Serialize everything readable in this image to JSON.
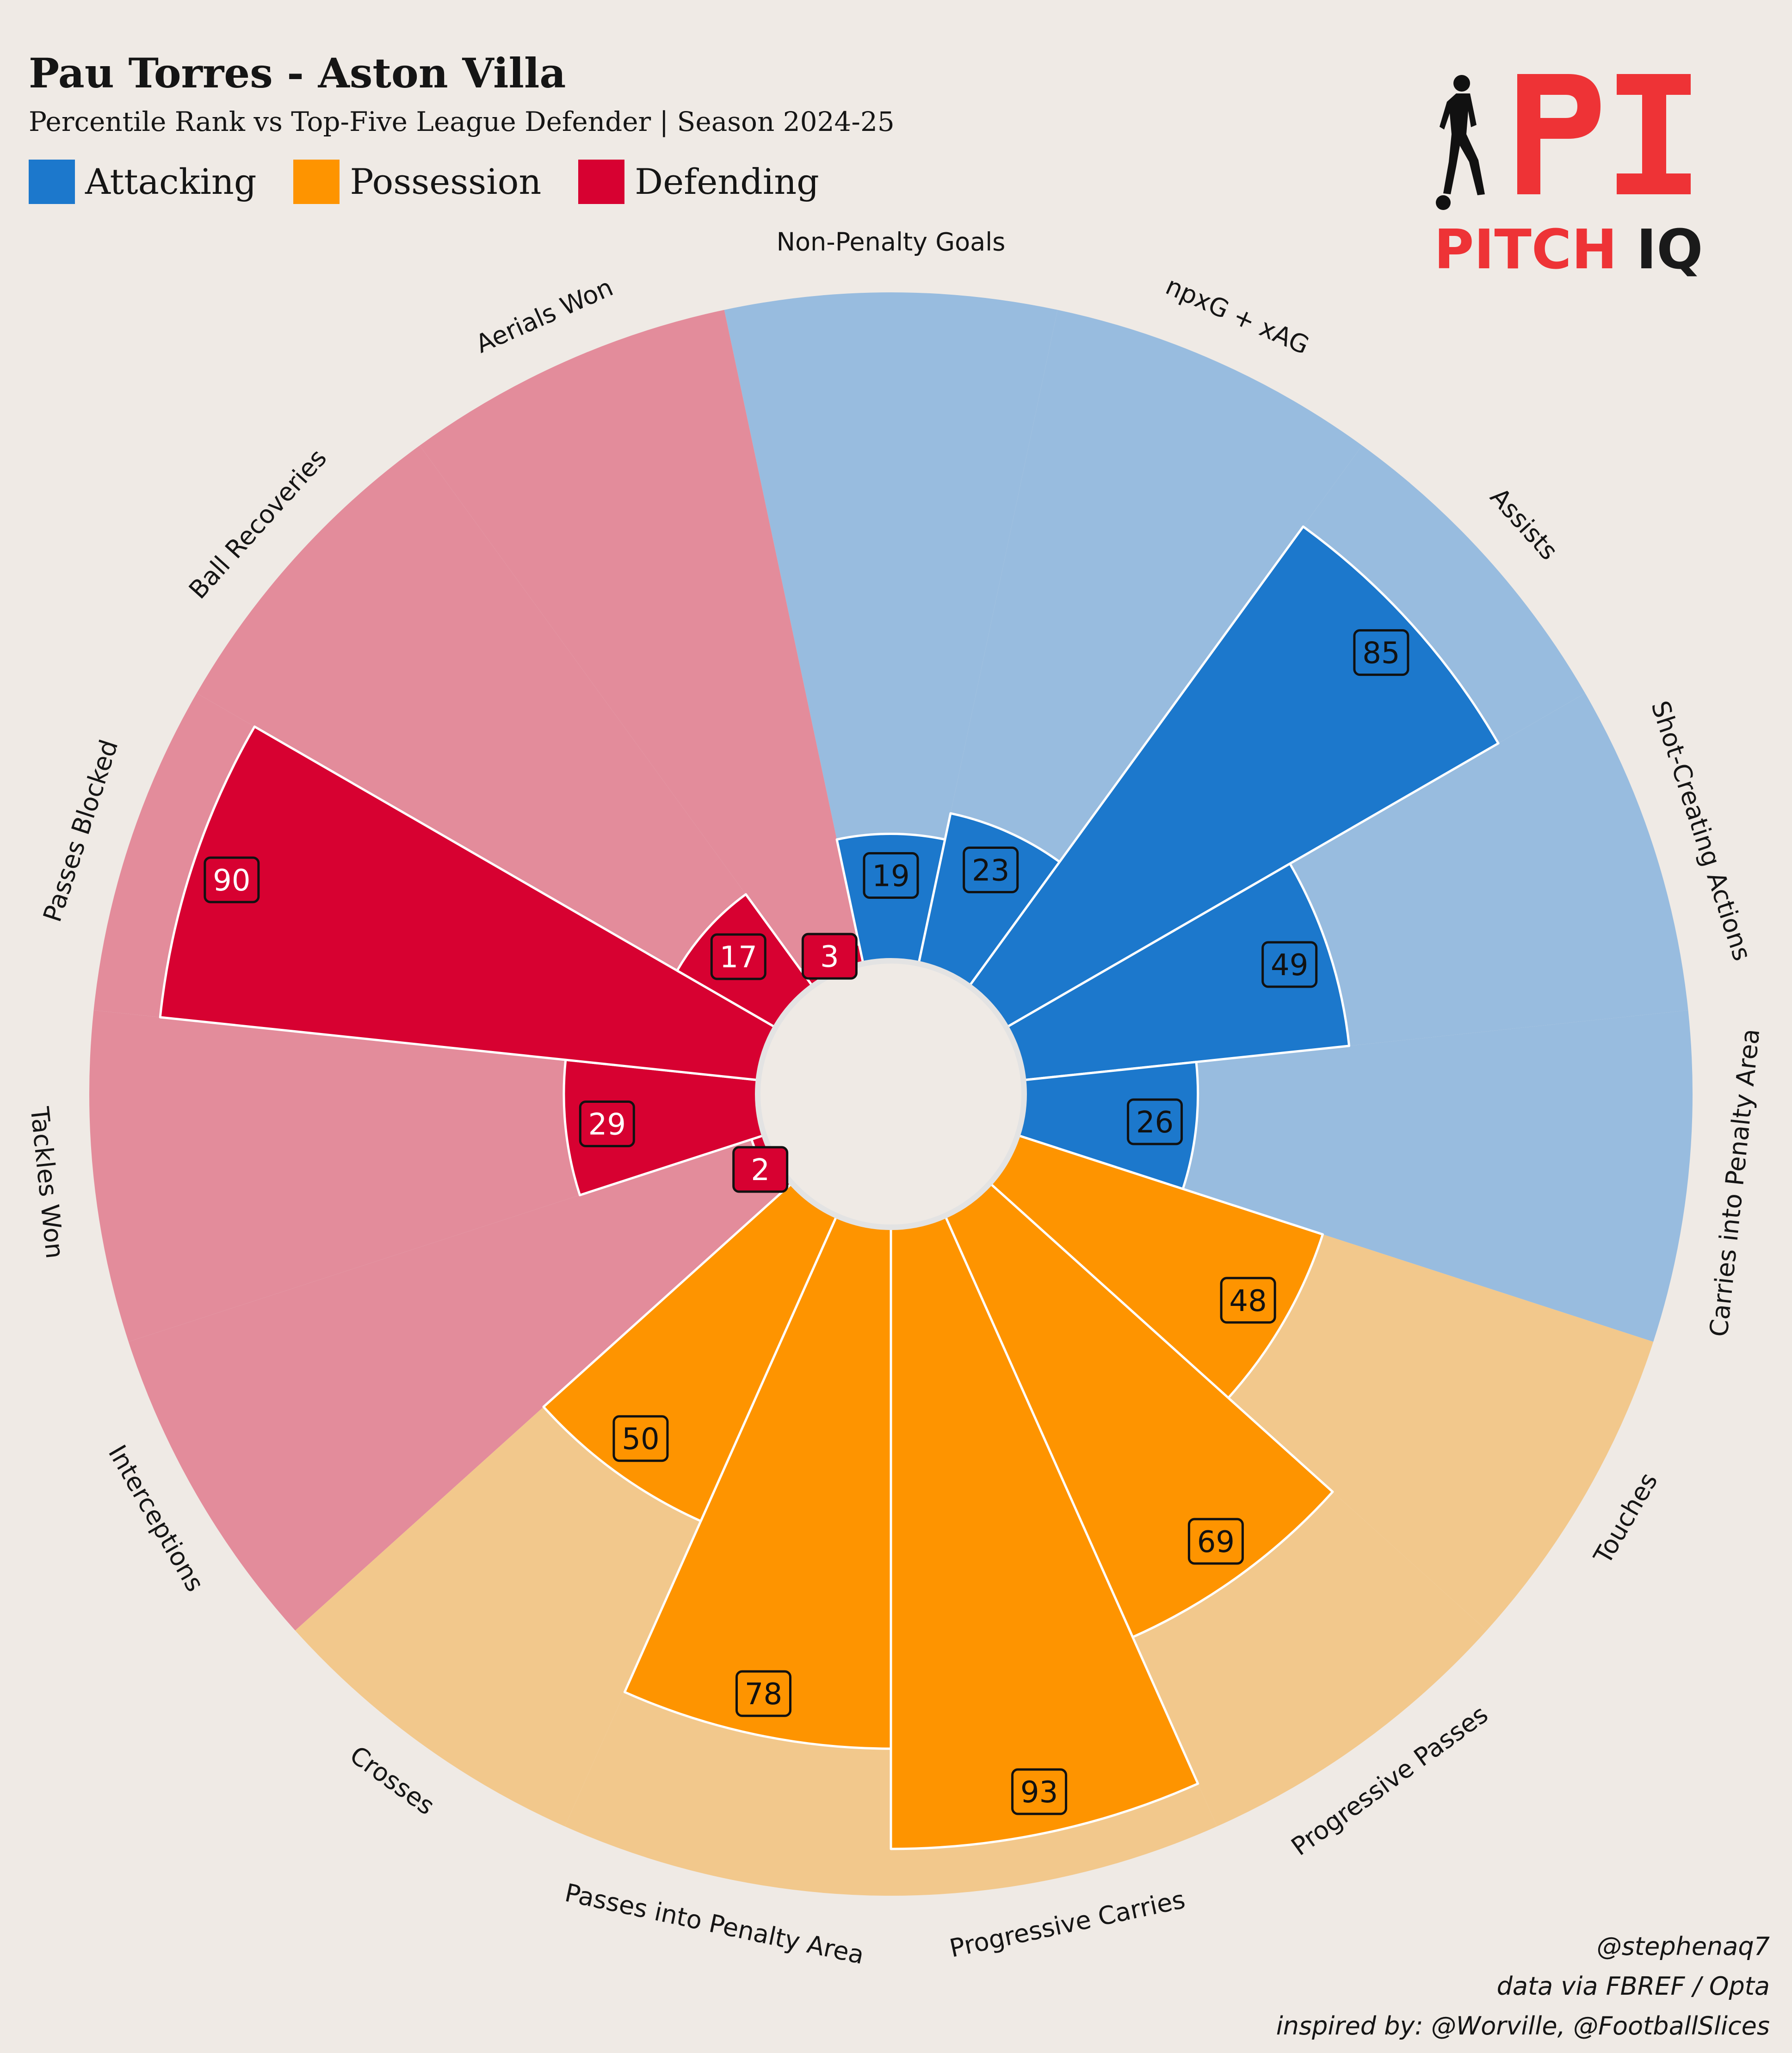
{
  "header": {
    "title": "Pau Torres - Aston Villa",
    "subtitle": "Percentile Rank vs Top-Five League Defender | Season 2024-25"
  },
  "legend": [
    {
      "label": "Attacking",
      "color": "#1c78cc"
    },
    {
      "label": "Possession",
      "color": "#fe9400"
    },
    {
      "label": "Defending",
      "color": "#d70131"
    }
  ],
  "logo": {
    "mark": "PI",
    "word1": "PITCH",
    "word2": "IQ",
    "icon": "footballer-silhouette-icon"
  },
  "chart_data": {
    "type": "radar-bar",
    "ylim": [
      0,
      100
    ],
    "categories": [
      "Non-Penalty Goals",
      "npxG + xAG",
      "Assists",
      "Shot-Creating Actions",
      "Carries into Penalty Area",
      "Touches",
      "Progressive Passes",
      "Progressive Carries",
      "Passes into Penalty Area",
      "Crosses",
      "Interceptions",
      "Tackles Won",
      "Passes Blocked",
      "Ball Recoveries",
      "Aerials Won"
    ],
    "values": [
      19,
      23,
      85,
      49,
      26,
      48,
      69,
      93,
      78,
      50,
      2,
      29,
      90,
      17,
      3
    ],
    "groups": [
      "Attacking",
      "Attacking",
      "Attacking",
      "Attacking",
      "Attacking",
      "Possession",
      "Possession",
      "Possession",
      "Possession",
      "Possession",
      "Defending",
      "Defending",
      "Defending",
      "Defending",
      "Defending"
    ],
    "colors": {
      "Attacking": {
        "bar": "#1c78cc",
        "background": "#98bcdf",
        "label_text": "#111111"
      },
      "Possession": {
        "bar": "#fe9400",
        "background": "#f2c88c",
        "label_text": "#111111"
      },
      "Defending": {
        "bar": "#d70131",
        "background": "#e38c9b",
        "label_text": "#ffffff"
      }
    }
  },
  "credits": [
    "@stephenaq7",
    "data via FBREF / Opta",
    "inspired by: @Worville, @FootballSlices"
  ]
}
